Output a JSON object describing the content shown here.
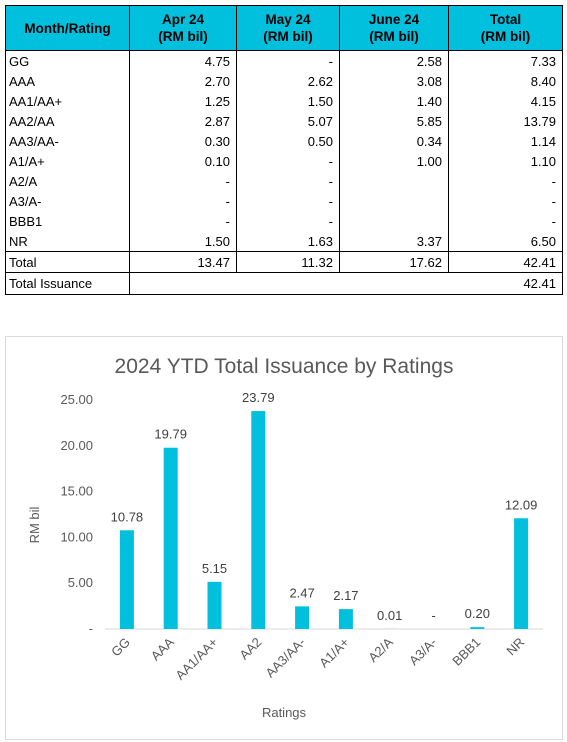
{
  "table": {
    "headers": [
      {
        "line1": "Month/Rating",
        "line2": ""
      },
      {
        "line1": "Apr 24",
        "line2": "(RM bil)"
      },
      {
        "line1": "May 24",
        "line2": "(RM bil)"
      },
      {
        "line1": "June 24",
        "line2": "(RM bil)"
      },
      {
        "line1": "Total",
        "line2": "(RM bil)"
      }
    ],
    "rows": [
      [
        "GG",
        "4.75",
        "-",
        "2.58",
        "7.33"
      ],
      [
        "AAA",
        "2.70",
        "2.62",
        "3.08",
        "8.40"
      ],
      [
        "AA1/AA+",
        "1.25",
        "1.50",
        "1.40",
        "4.15"
      ],
      [
        "AA2/AA",
        "2.87",
        "5.07",
        "5.85",
        "13.79"
      ],
      [
        "AA3/AA-",
        "0.30",
        "0.50",
        "0.34",
        "1.14"
      ],
      [
        "A1/A+",
        "0.10",
        "-",
        "1.00",
        "1.10"
      ],
      [
        "A2/A",
        "-",
        "-",
        "",
        "-"
      ],
      [
        "A3/A-",
        "-",
        "-",
        "",
        "-"
      ],
      [
        "BBB1",
        "-",
        "-",
        "",
        "-"
      ],
      [
        "NR",
        "1.50",
        "1.63",
        "3.37",
        "6.50"
      ]
    ],
    "total_row": [
      "Total",
      "13.47",
      "11.32",
      "17.62",
      "42.41"
    ],
    "grand_total": {
      "label": "Total Issuance",
      "value": "42.41"
    }
  },
  "chart_data": {
    "type": "bar",
    "title": "2024 YTD Total Issuance by Ratings",
    "xlabel": "Ratings",
    "ylabel": "RM bil",
    "categories": [
      "GG",
      "AAA",
      "AA1/AA+",
      "AA2",
      "AA3/AA-",
      "A1/A+",
      "A2/A",
      "A3/A-",
      "BBB1",
      "NR"
    ],
    "values": [
      10.78,
      19.79,
      5.15,
      23.79,
      2.47,
      2.17,
      0.01,
      0,
      0.2,
      12.09
    ],
    "data_labels": [
      "10.78",
      "19.79",
      "5.15",
      "23.79",
      "2.47",
      "2.17",
      "0.01",
      "-",
      "0.20",
      "12.09"
    ],
    "y_ticks": [
      "-",
      "5.00",
      "10.00",
      "15.00",
      "20.00",
      "25.00"
    ],
    "ylim": [
      0,
      25
    ],
    "grid": false,
    "bar_color": "#00c0de"
  }
}
